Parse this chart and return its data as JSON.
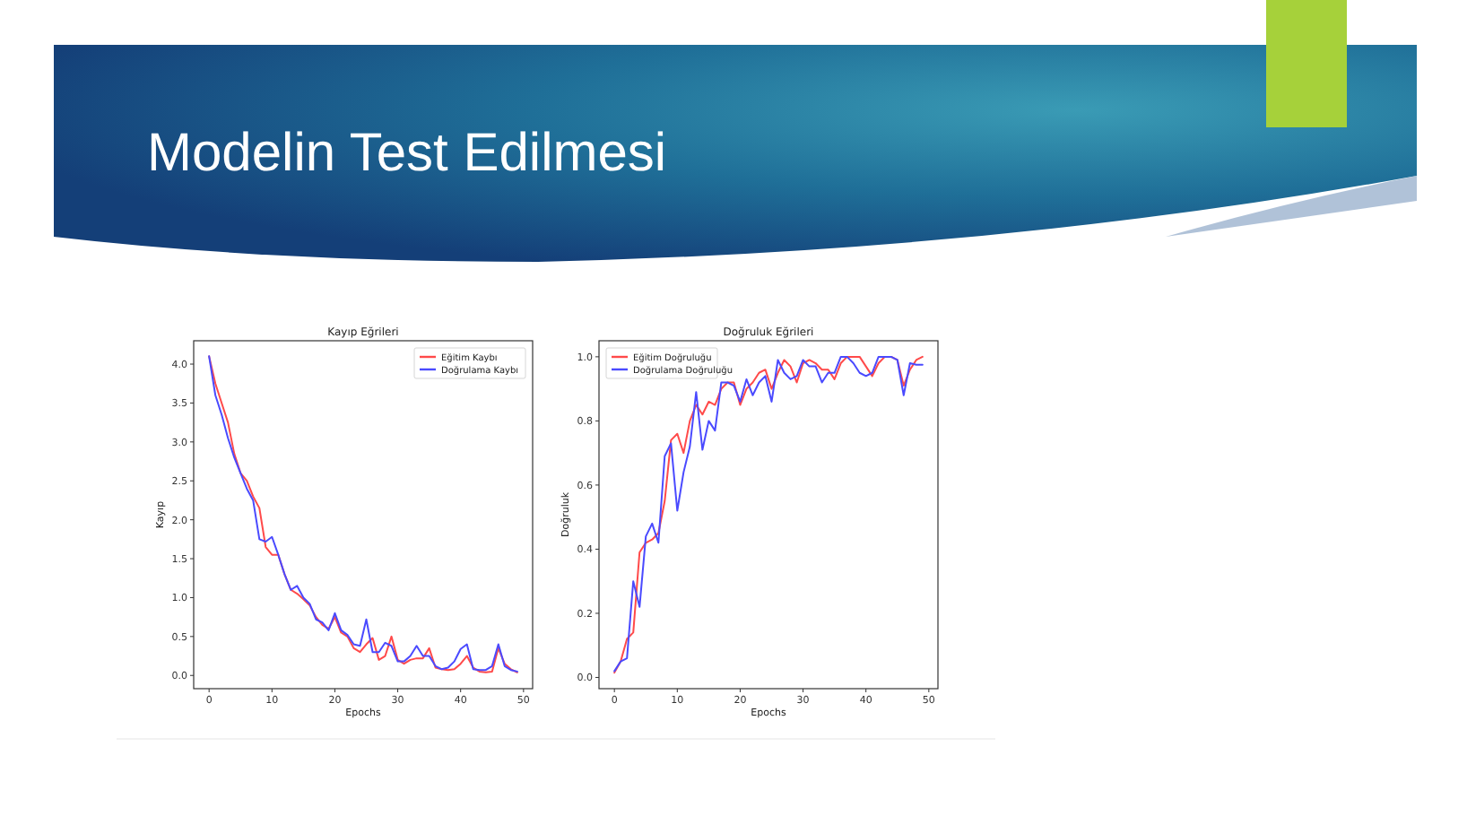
{
  "chart_data": [
    {
      "type": "other",
      "title": "Modelin Test Edilmesi"
    },
    {
      "type": "line",
      "title": "Kayıp Eğrileri",
      "xlabel": "Epochs",
      "ylabel": "Kayıp",
      "legend": "top right",
      "grid": false,
      "x": [
        0,
        1,
        2,
        3,
        4,
        5,
        6,
        7,
        8,
        9,
        10,
        11,
        12,
        13,
        14,
        15,
        16,
        17,
        18,
        19,
        20,
        21,
        22,
        23,
        24,
        25,
        26,
        27,
        28,
        29,
        30,
        31,
        32,
        33,
        34,
        35,
        36,
        37,
        38,
        39,
        40,
        41,
        42,
        43,
        44,
        45,
        46,
        47,
        48,
        49
      ],
      "xlim": [
        -2.45,
        51.45
      ],
      "xticks": [
        0,
        10,
        20,
        30,
        40,
        50
      ],
      "ylim": [
        -0.17,
        4.3
      ],
      "yticks": [
        {
          "value": 0,
          "label": "0.0"
        },
        {
          "value": 0.5,
          "label": "0.5"
        },
        {
          "value": 1,
          "label": "1.0"
        },
        {
          "value": 1.5,
          "label": "1.5"
        },
        {
          "value": 2,
          "label": "2.0"
        },
        {
          "value": 2.5,
          "label": "2.5"
        },
        {
          "value": 3,
          "label": "3.0"
        },
        {
          "value": 3.5,
          "label": "3.5"
        },
        {
          "value": 4,
          "label": "4.0"
        }
      ],
      "series": [
        {
          "name": "Eğitim Kaybı",
          "color": "#ff4a4a",
          "values": [
            4.1,
            3.75,
            3.5,
            3.25,
            2.85,
            2.6,
            2.5,
            2.3,
            2.15,
            1.65,
            1.55,
            1.55,
            1.3,
            1.1,
            1.05,
            0.98,
            0.9,
            0.75,
            0.65,
            0.6,
            0.75,
            0.55,
            0.5,
            0.35,
            0.3,
            0.4,
            0.48,
            0.2,
            0.25,
            0.5,
            0.2,
            0.15,
            0.2,
            0.22,
            0.22,
            0.35,
            0.1,
            0.08,
            0.07,
            0.08,
            0.15,
            0.25,
            0.1,
            0.05,
            0.04,
            0.05,
            0.35,
            0.15,
            0.08,
            0.04
          ]
        },
        {
          "name": "Doğrulama Kaybı",
          "color": "#4a4aff",
          "values": [
            4.1,
            3.6,
            3.35,
            3.05,
            2.8,
            2.6,
            2.4,
            2.25,
            1.75,
            1.72,
            1.78,
            1.55,
            1.3,
            1.1,
            1.15,
            1.0,
            0.92,
            0.72,
            0.68,
            0.58,
            0.8,
            0.58,
            0.52,
            0.4,
            0.38,
            0.72,
            0.3,
            0.3,
            0.42,
            0.38,
            0.18,
            0.18,
            0.25,
            0.38,
            0.25,
            0.25,
            0.12,
            0.08,
            0.1,
            0.18,
            0.34,
            0.4,
            0.08,
            0.07,
            0.07,
            0.12,
            0.4,
            0.12,
            0.07,
            0.05
          ]
        }
      ]
    },
    {
      "type": "line",
      "title": "Doğruluk Eğrileri",
      "xlabel": "Epochs",
      "ylabel": "Doğruluk",
      "legend": "top left",
      "grid": false,
      "x": [
        0,
        1,
        2,
        3,
        4,
        5,
        6,
        7,
        8,
        9,
        10,
        11,
        12,
        13,
        14,
        15,
        16,
        17,
        18,
        19,
        20,
        21,
        22,
        23,
        24,
        25,
        26,
        27,
        28,
        29,
        30,
        31,
        32,
        33,
        34,
        35,
        36,
        37,
        38,
        39,
        40,
        41,
        42,
        43,
        44,
        45,
        46,
        47,
        48,
        49
      ],
      "xlim": [
        -2.45,
        51.45
      ],
      "xticks": [
        0,
        10,
        20,
        30,
        40,
        50
      ],
      "ylim": [
        -0.035,
        1.05
      ],
      "yticks": [
        {
          "value": 0,
          "label": "0.0"
        },
        {
          "value": 0.2,
          "label": "0.2"
        },
        {
          "value": 0.4,
          "label": "0.4"
        },
        {
          "value": 0.6,
          "label": "0.6"
        },
        {
          "value": 0.8,
          "label": "0.8"
        },
        {
          "value": 1,
          "label": "1.0"
        }
      ],
      "series": [
        {
          "name": "Eğitim Doğruluğu",
          "color": "#ff4a4a",
          "values": [
            0.015,
            0.05,
            0.12,
            0.14,
            0.39,
            0.42,
            0.43,
            0.45,
            0.55,
            0.74,
            0.76,
            0.7,
            0.8,
            0.85,
            0.82,
            0.86,
            0.85,
            0.9,
            0.92,
            0.92,
            0.85,
            0.9,
            0.92,
            0.95,
            0.96,
            0.9,
            0.95,
            0.99,
            0.97,
            0.92,
            0.98,
            0.99,
            0.98,
            0.96,
            0.96,
            0.93,
            0.98,
            1.0,
            1.0,
            1.0,
            0.97,
            0.94,
            0.98,
            1.0,
            1.0,
            0.99,
            0.91,
            0.96,
            0.99,
            1.0
          ]
        },
        {
          "name": "Doğrulama Doğruluğu",
          "color": "#4a4aff",
          "values": [
            0.02,
            0.05,
            0.06,
            0.3,
            0.22,
            0.44,
            0.48,
            0.42,
            0.69,
            0.73,
            0.52,
            0.64,
            0.72,
            0.89,
            0.71,
            0.8,
            0.77,
            0.92,
            0.92,
            0.91,
            0.86,
            0.93,
            0.88,
            0.92,
            0.94,
            0.86,
            0.99,
            0.95,
            0.93,
            0.94,
            0.99,
            0.97,
            0.97,
            0.92,
            0.95,
            0.95,
            1.0,
            1.0,
            0.98,
            0.95,
            0.94,
            0.95,
            1.0,
            1.0,
            1.0,
            0.99,
            0.88,
            0.98,
            0.975,
            0.975
          ]
        }
      ]
    }
  ]
}
